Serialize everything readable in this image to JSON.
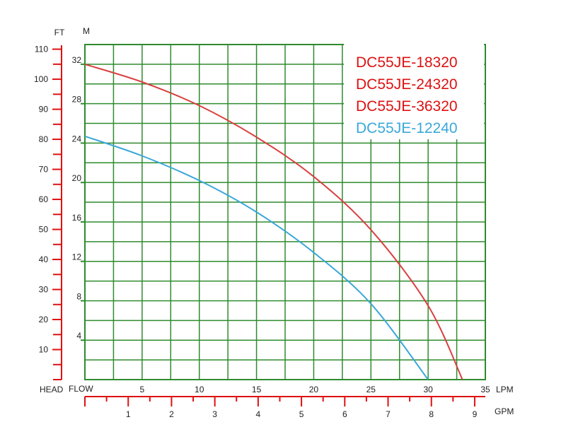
{
  "colors": {
    "grid": "#2e8b2e",
    "axis": "#dd1111",
    "series_red": "#d94040",
    "series_blue": "#3aa8d8",
    "text": "#222222"
  },
  "chart_data": {
    "type": "line",
    "x_primary": {
      "label": "FLOW",
      "unit": "LPM",
      "range": [
        0,
        35
      ],
      "ticks": [
        5,
        10,
        15,
        20,
        25,
        30,
        35
      ]
    },
    "x_secondary": {
      "unit": "GPM",
      "ticks": [
        1,
        2,
        3,
        4,
        5,
        6,
        7,
        8,
        9
      ]
    },
    "y_primary": {
      "unit": "M",
      "range": [
        0,
        34
      ],
      "ticks": [
        4,
        8,
        12,
        16,
        20,
        24,
        28,
        32
      ]
    },
    "y_secondary": {
      "label": "HEAD",
      "unit": "FT",
      "ticks": [
        10,
        20,
        30,
        40,
        50,
        60,
        70,
        80,
        90,
        100,
        110
      ]
    },
    "grid": true,
    "legend_position": "top-right",
    "legend": [
      {
        "label": "DC55JE-18320",
        "color": "#dd1111"
      },
      {
        "label": "DC55JE-24320",
        "color": "#dd1111"
      },
      {
        "label": "DC55JE-36320",
        "color": "#dd1111"
      },
      {
        "label": "DC55JE-12240",
        "color": "#3aa8d8"
      }
    ],
    "series": [
      {
        "color": "#d94040",
        "points": [
          [
            0,
            32.0
          ],
          [
            5,
            30.2
          ],
          [
            10,
            27.8
          ],
          [
            15,
            24.6
          ],
          [
            20,
            20.6
          ],
          [
            25,
            15.2
          ],
          [
            30,
            7.5
          ],
          [
            33,
            0
          ]
        ]
      },
      {
        "color": "#3aa8d8",
        "points": [
          [
            0,
            24.7
          ],
          [
            5,
            22.7
          ],
          [
            10,
            20.2
          ],
          [
            15,
            17.0
          ],
          [
            20,
            12.9
          ],
          [
            25,
            7.7
          ],
          [
            30,
            0
          ]
        ]
      }
    ]
  }
}
